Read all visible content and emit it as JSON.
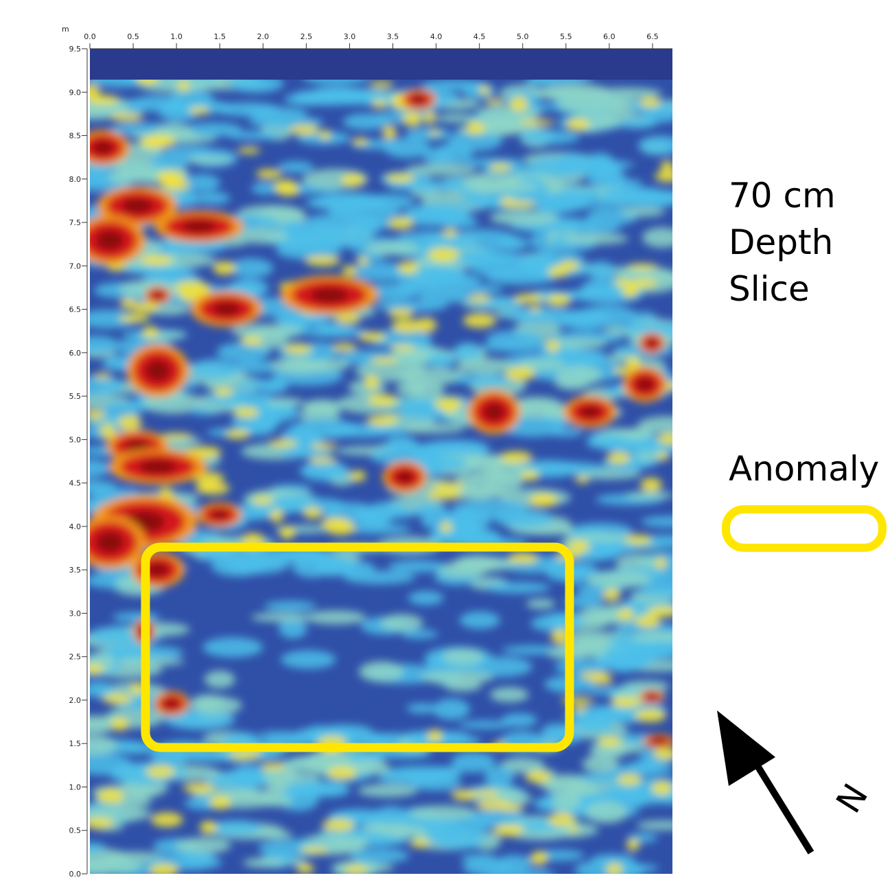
{
  "chart_data": {
    "type": "heatmap",
    "axis_unit": "m",
    "xlim": [
      0,
      6.73
    ],
    "ylim": [
      0,
      9.5
    ],
    "xticks": [
      {
        "value": 0,
        "label": "0.0"
      },
      0.5,
      {
        "value": 1,
        "label": "1.0"
      },
      1.5,
      {
        "value": 2,
        "label": "2.0"
      },
      2.5,
      {
        "value": 3,
        "label": "3.0"
      },
      3.5,
      {
        "value": 4,
        "label": "4.0"
      },
      4.5,
      {
        "value": 5,
        "label": "5.0"
      },
      5.5,
      {
        "value": 6,
        "label": "6.0"
      },
      6.5
    ],
    "yticks": [
      {
        "value": 0,
        "label": "0.0"
      },
      0.5,
      {
        "value": 1,
        "label": "1.0"
      },
      1.5,
      {
        "value": 2,
        "label": "2.0"
      },
      2.5,
      {
        "value": 3,
        "label": "3.0"
      },
      3.5,
      {
        "value": 4,
        "label": "4.0"
      },
      4.5,
      {
        "value": 5,
        "label": "5.0"
      },
      5.5,
      {
        "value": 6,
        "label": "6.0"
      },
      6.5,
      {
        "value": 7,
        "label": "7.0"
      },
      7.5,
      {
        "value": 8,
        "label": "8.0"
      },
      8.5,
      {
        "value": 9,
        "label": "9.0"
      },
      9.5
    ],
    "slice_label": [
      "70 cm",
      "Depth",
      "Slice"
    ],
    "legend_label": "Anomaly",
    "north_label": "N"
  }
}
